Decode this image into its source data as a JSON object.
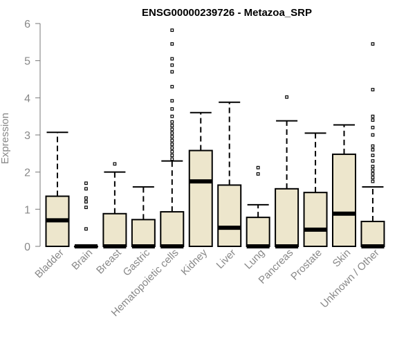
{
  "chart_data": {
    "type": "boxplot",
    "title": "ENSG00000239726 - Metazoa_SRP",
    "ylabel": "Expression",
    "ylim": [
      0,
      6
    ],
    "yticks": [
      "0",
      "1",
      "2",
      "3",
      "4",
      "5",
      "6"
    ],
    "box_fill": "#ede6cc",
    "categories": [
      "Bladder",
      "Brain",
      "Breast",
      "Gastric",
      "Hematopoietic cells",
      "Kidney",
      "Liver",
      "Lung",
      "Pancreas",
      "Prostate",
      "Skin",
      "Unknown / Other"
    ],
    "boxes": [
      {
        "q1": 0,
        "median": 0.7,
        "q3": 1.35,
        "whisker_low": 0,
        "whisker_high": 3.07,
        "outliers": []
      },
      {
        "q1": 0,
        "median": 0,
        "q3": 0,
        "whisker_low": 0,
        "whisker_high": 0,
        "outliers": [
          0.47,
          1.05,
          1.2,
          1.3,
          1.55,
          1.7
        ]
      },
      {
        "q1": 0,
        "median": 0,
        "q3": 0.88,
        "whisker_low": 0,
        "whisker_high": 2.0,
        "outliers": [
          2.22
        ]
      },
      {
        "q1": 0,
        "median": 0,
        "q3": 0.72,
        "whisker_low": 0,
        "whisker_high": 1.6,
        "outliers": []
      },
      {
        "q1": 0,
        "median": 0,
        "q3": 0.93,
        "whisker_low": 0,
        "whisker_high": 2.3,
        "outliers": [
          2.35,
          2.45,
          2.55,
          2.65,
          2.75,
          2.85,
          2.95,
          3.05,
          3.15,
          3.25,
          3.35,
          3.5,
          3.7,
          3.92,
          4.3,
          4.7,
          4.88,
          5.05,
          5.45,
          5.82
        ]
      },
      {
        "q1": 0,
        "median": 1.75,
        "q3": 2.58,
        "whisker_low": 0,
        "whisker_high": 3.6,
        "outliers": []
      },
      {
        "q1": 0,
        "median": 0.5,
        "q3": 1.65,
        "whisker_low": 0,
        "whisker_high": 3.88,
        "outliers": []
      },
      {
        "q1": 0,
        "median": 0,
        "q3": 0.78,
        "whisker_low": 0,
        "whisker_high": 1.12,
        "outliers": [
          1.95,
          2.12
        ]
      },
      {
        "q1": 0,
        "median": 0,
        "q3": 1.55,
        "whisker_low": 0,
        "whisker_high": 3.38,
        "outliers": [
          4.02
        ]
      },
      {
        "q1": 0,
        "median": 0.45,
        "q3": 1.45,
        "whisker_low": 0,
        "whisker_high": 3.05,
        "outliers": []
      },
      {
        "q1": 0,
        "median": 0.88,
        "q3": 2.48,
        "whisker_low": 0,
        "whisker_high": 3.27,
        "outliers": []
      },
      {
        "q1": 0,
        "median": 0,
        "q3": 0.67,
        "whisker_low": 0,
        "whisker_high": 1.6,
        "outliers": [
          1.75,
          1.85,
          1.95,
          2.05,
          2.15,
          2.3,
          2.45,
          2.6,
          2.7,
          3.0,
          3.2,
          3.4,
          3.5,
          4.22,
          5.45
        ]
      }
    ]
  }
}
